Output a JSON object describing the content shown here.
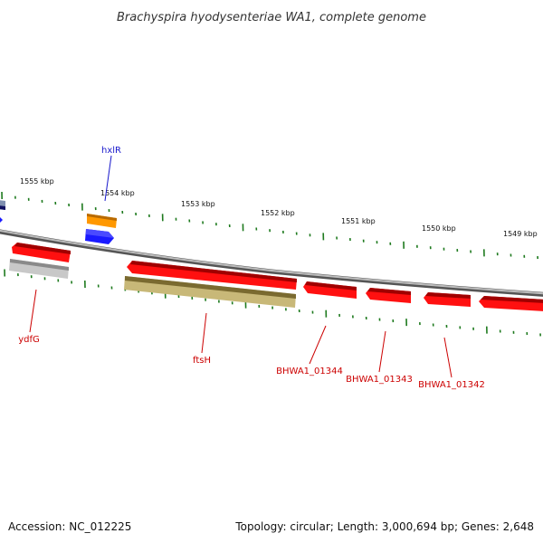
{
  "title": "Brachyspira hyodysenteriae WA1, complete genome",
  "footer": {
    "accession": "Accession: NC_012225",
    "summary": "Topology: circular; Length: 3,000,694 bp; Genes: 2,648"
  },
  "colors": {
    "backbone": "#8a8a8a",
    "tick": "#1e7a1e",
    "gene_red": "#ff1010",
    "gene_blue": "#1a1aff",
    "gene_orange": "#ff9800",
    "gene_gray": "#c8c8c8",
    "gene_olive": "#c8b878",
    "label_blue": "#1a1acc",
    "label_red": "#cc0000"
  },
  "kbp_labels": [
    "1555 kbp",
    "1554 kbp",
    "1553 kbp",
    "1552 kbp",
    "1551 kbp",
    "1550 kbp",
    "1549 kbp"
  ],
  "genes": [
    {
      "name": "hxlR",
      "color": "gene_blue",
      "label_color": "label_blue"
    },
    {
      "name": "ydfG",
      "color": "gene_gray",
      "label_color": "label_red"
    },
    {
      "name": "ftsH",
      "color": "gene_olive",
      "label_color": "label_red"
    },
    {
      "name": "BHWA1_01344",
      "color": "gene_red",
      "label_color": "label_red"
    },
    {
      "name": "BHWA1_01343",
      "color": "gene_red",
      "label_color": "label_red"
    },
    {
      "name": "BHWA1_01342",
      "color": "gene_red",
      "label_color": "label_red"
    }
  ]
}
